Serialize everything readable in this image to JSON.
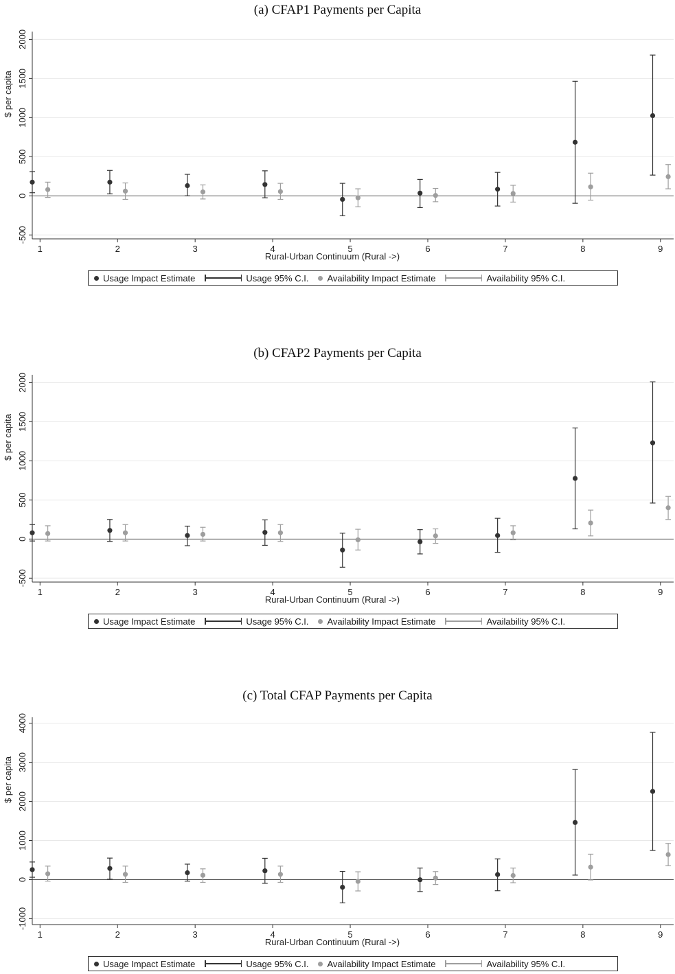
{
  "legend": {
    "usage_estimate": "Usage Impact Estimate",
    "usage_ci": "Usage 95% C.I.",
    "availability_estimate": "Availability Impact Estimate",
    "availability_ci": "Availability 95% C.I."
  },
  "colors": {
    "usage": "#333333",
    "availability": "#9e9e9e",
    "grid": "#e8e8e8",
    "axis": "#333333"
  },
  "chart_data": [
    {
      "type": "scatter",
      "title": "(a) CFAP1 Payments per Capita",
      "xlabel": "Rural-Urban Continuum (Rural ->)",
      "ylabel": "$ per capita",
      "x": [
        1,
        2,
        3,
        4,
        5,
        6,
        7,
        8,
        9
      ],
      "yticks": [
        -500,
        0,
        500,
        1000,
        1500,
        2000
      ],
      "ylim": [
        -550,
        2100
      ],
      "grid": true,
      "legend_position": "bottom",
      "series": [
        {
          "name": "Usage Impact Estimate",
          "values": [
            175,
            175,
            130,
            145,
            -45,
            35,
            85,
            685,
            1025
          ],
          "ci_low": [
            40,
            25,
            0,
            -25,
            -255,
            -150,
            -130,
            -95,
            265
          ],
          "ci_high": [
            310,
            325,
            275,
            320,
            160,
            210,
            300,
            1465,
            1800
          ]
        },
        {
          "name": "Availability Impact Estimate",
          "values": [
            80,
            60,
            50,
            55,
            -25,
            5,
            30,
            115,
            245
          ],
          "ci_low": [
            -20,
            -45,
            -40,
            -45,
            -140,
            -75,
            -80,
            -55,
            90
          ],
          "ci_high": [
            175,
            165,
            140,
            160,
            90,
            95,
            135,
            290,
            400
          ]
        }
      ]
    },
    {
      "type": "scatter",
      "title": "(b) CFAP2 Payments per Capita",
      "xlabel": "Rural-Urban Continuum (Rural ->)",
      "ylabel": "$ per capita",
      "x": [
        1,
        2,
        3,
        4,
        5,
        6,
        7,
        8,
        9
      ],
      "yticks": [
        -500,
        0,
        500,
        1000,
        1500,
        2000
      ],
      "ylim": [
        -550,
        2100
      ],
      "grid": true,
      "legend_position": "bottom",
      "series": [
        {
          "name": "Usage Impact Estimate",
          "values": [
            80,
            110,
            45,
            85,
            -140,
            -35,
            45,
            775,
            1230
          ],
          "ci_low": [
            -25,
            -30,
            -85,
            -80,
            -360,
            -190,
            -170,
            130,
            460
          ],
          "ci_high": [
            185,
            250,
            165,
            245,
            75,
            120,
            265,
            1420,
            2010
          ]
        },
        {
          "name": "Availability Impact Estimate",
          "values": [
            70,
            80,
            60,
            80,
            -10,
            40,
            80,
            205,
            400
          ],
          "ci_low": [
            -25,
            -25,
            -25,
            -30,
            -140,
            -55,
            -10,
            40,
            250
          ],
          "ci_high": [
            170,
            185,
            150,
            185,
            125,
            130,
            170,
            370,
            545
          ]
        }
      ]
    },
    {
      "type": "scatter",
      "title": "(c) Total CFAP Payments per Capita",
      "xlabel": "Rural-Urban Continuum (Rural ->)",
      "ylabel": "$ per capita",
      "x": [
        1,
        2,
        3,
        4,
        5,
        6,
        7,
        8,
        9
      ],
      "yticks": [
        -1000,
        0,
        1000,
        2000,
        3000,
        4000
      ],
      "ylim": [
        -1150,
        4150
      ],
      "grid": true,
      "legend_position": "bottom",
      "series": [
        {
          "name": "Usage Impact Estimate",
          "values": [
            255,
            285,
            175,
            225,
            -195,
            -5,
            130,
            1460,
            2255
          ],
          "ci_low": [
            60,
            10,
            -40,
            -95,
            -595,
            -305,
            -285,
            115,
            745
          ],
          "ci_high": [
            450,
            550,
            395,
            545,
            210,
            295,
            530,
            2815,
            3765
          ]
        },
        {
          "name": "Availability Impact Estimate",
          "values": [
            150,
            135,
            110,
            135,
            -45,
            40,
            105,
            320,
            640
          ],
          "ci_low": [
            -40,
            -70,
            -70,
            -70,
            -290,
            -125,
            -80,
            -10,
            355
          ],
          "ci_high": [
            345,
            345,
            275,
            345,
            200,
            205,
            295,
            650,
            925
          ]
        }
      ]
    }
  ]
}
